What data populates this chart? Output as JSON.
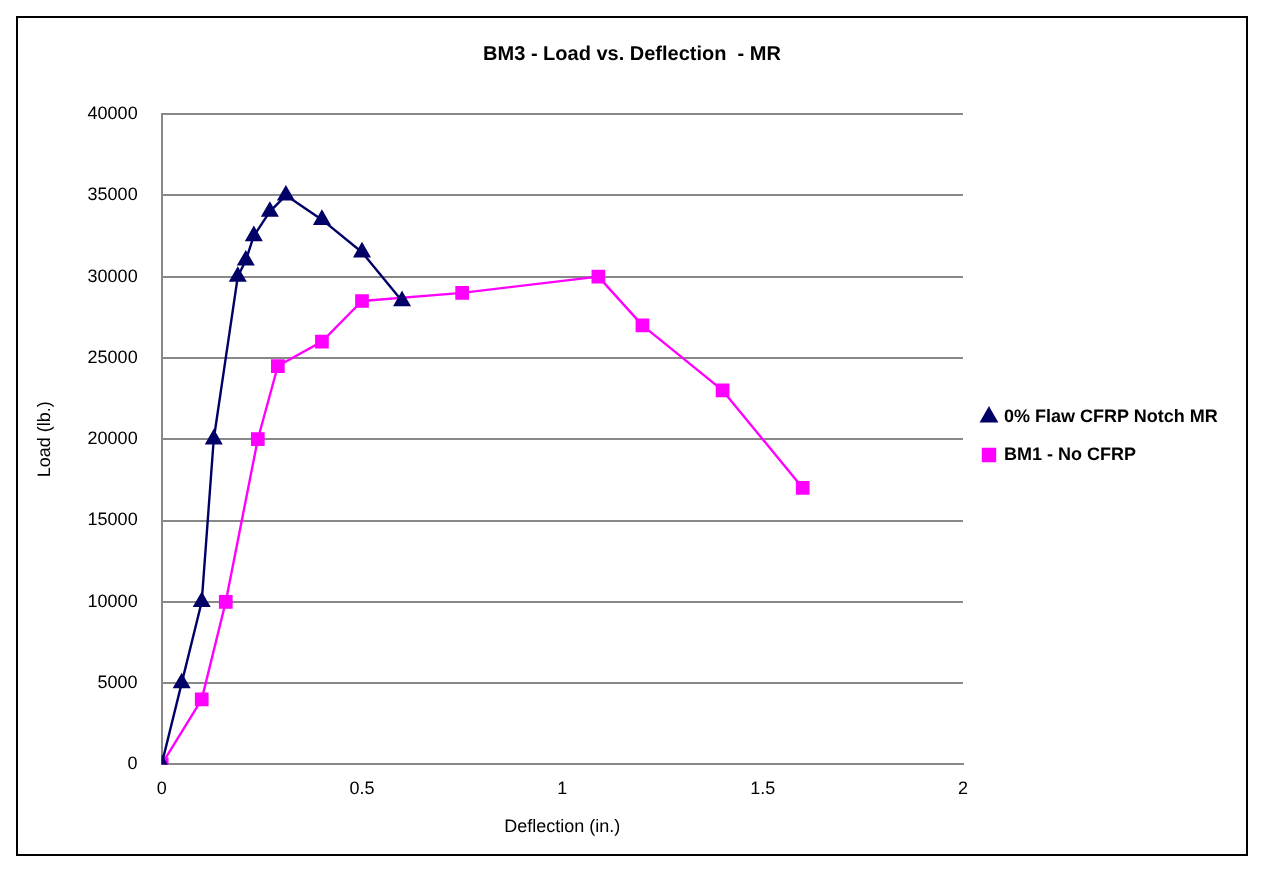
{
  "chart_data": {
    "type": "line",
    "title": "BM3 - Load vs. Deflection  - MR",
    "xlabel": "Deflection (in.)",
    "ylabel": "Load (lb.)",
    "xlim": [
      0,
      2
    ],
    "xticks": [
      0,
      0.5,
      1,
      1.5,
      2
    ],
    "ylim": [
      0,
      40000
    ],
    "yticks": [
      0,
      5000,
      10000,
      15000,
      20000,
      25000,
      30000,
      35000,
      40000
    ],
    "grid": "y",
    "legend": "right",
    "series": [
      {
        "name": "0% Flaw CFRP Notch MR",
        "color": "#000066",
        "marker": "triangle",
        "x": [
          0,
          0.05,
          0.1,
          0.13,
          0.19,
          0.21,
          0.23,
          0.27,
          0.31,
          0.4,
          0.5,
          0.6
        ],
        "values": [
          0,
          5000,
          10000,
          20000,
          30000,
          31000,
          32500,
          34000,
          35000,
          33500,
          31500,
          28500
        ]
      },
      {
        "name": "BM1 - No CFRP",
        "color": "#ff00ff",
        "marker": "square",
        "x": [
          0,
          0.1,
          0.16,
          0.24,
          0.29,
          0.4,
          0.5,
          0.75,
          1.09,
          1.2,
          1.4,
          1.6
        ],
        "values": [
          0,
          4000,
          10000,
          20000,
          24500,
          26000,
          28500,
          29000,
          30000,
          27000,
          23000,
          17000
        ]
      }
    ]
  }
}
